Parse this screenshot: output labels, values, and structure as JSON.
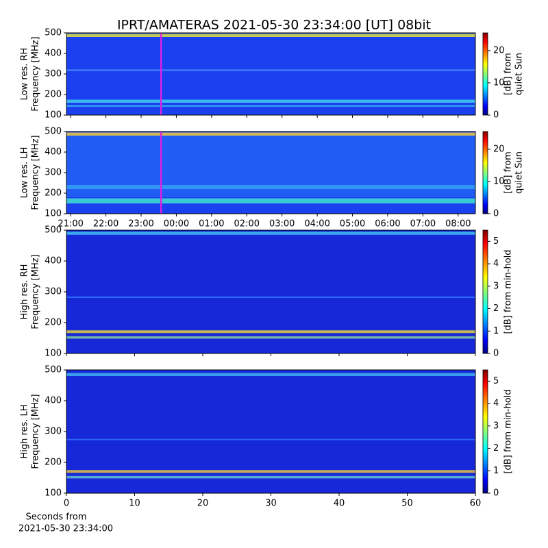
{
  "title": "IPRT/AMATERAS 2021-05-30 23:34:00 [UT]   08bit",
  "chart_data": [
    {
      "type": "heatmap",
      "ylabel": [
        "Low res. RH",
        "Frequency [MHz]"
      ],
      "ylim": [
        100,
        500
      ],
      "yticks": [
        100,
        200,
        300,
        400,
        500
      ],
      "xlim": [
        20.88,
        32.49
      ],
      "xticks": [
        21,
        22,
        23,
        24,
        25,
        26,
        27,
        28,
        29,
        30,
        31,
        32
      ],
      "tick_labels": false,
      "cursor": 23.567,
      "cursor_color": "#e020e0",
      "colorbar_label": [
        "[dB] from",
        "quiet Sun"
      ],
      "clim": [
        0,
        25.5
      ],
      "cticks": [
        0,
        10,
        20
      ]
    },
    {
      "type": "heatmap",
      "ylabel": [
        "Low res. LH",
        "Frequency [MHz]"
      ],
      "ylim": [
        100,
        500
      ],
      "yticks": [
        100,
        200,
        300,
        400,
        500
      ],
      "xlim": [
        20.88,
        32.49
      ],
      "xticks": [
        {
          "value": 21,
          "label": "21:00"
        },
        {
          "value": 22,
          "label": "22:00"
        },
        {
          "value": 23,
          "label": "23:00"
        },
        {
          "value": 24,
          "label": "00:00"
        },
        {
          "value": 25,
          "label": "01:00"
        },
        {
          "value": 26,
          "label": "02:00"
        },
        {
          "value": 27,
          "label": "03:00"
        },
        {
          "value": 28,
          "label": "04:00"
        },
        {
          "value": 29,
          "label": "05:00"
        },
        {
          "value": 30,
          "label": "06:00"
        },
        {
          "value": 31,
          "label": "07:00"
        },
        {
          "value": 32,
          "label": "08:00"
        }
      ],
      "tick_labels": true,
      "cursor": 23.567,
      "cursor_color": "#e020e0",
      "colorbar_label": [
        "[dB] from",
        "quiet Sun"
      ],
      "clim": [
        0,
        25.5
      ],
      "cticks": [
        0,
        10,
        20
      ]
    },
    {
      "type": "heatmap",
      "ylabel": [
        "High res. RH",
        "Frequency [MHz]"
      ],
      "ylim": [
        100,
        500
      ],
      "yticks": [
        100,
        200,
        300,
        400,
        500
      ],
      "xlim": [
        0,
        60
      ],
      "xticks": [
        0,
        10,
        20,
        30,
        40,
        50,
        60
      ],
      "tick_labels": false,
      "colorbar_label": [
        "[dB] from min-hold"
      ],
      "clim": [
        0,
        5.5
      ],
      "cticks": [
        0,
        1,
        2,
        3,
        4,
        5
      ]
    },
    {
      "type": "heatmap",
      "ylabel": [
        "High res. LH",
        "Frequency [MHz]"
      ],
      "ylim": [
        100,
        500
      ],
      "yticks": [
        100,
        200,
        300,
        400,
        500
      ],
      "xlim": [
        0,
        60
      ],
      "xticks": [
        0,
        10,
        20,
        30,
        40,
        50,
        60
      ],
      "tick_labels": true,
      "xlabel": [
        "Seconds from",
        "2021-05-30 23:34:00"
      ],
      "colorbar_label": [
        "[dB] from min-hold"
      ],
      "clim": [
        0,
        5.5
      ],
      "cticks": [
        0,
        1,
        2,
        3,
        4,
        5
      ]
    }
  ]
}
